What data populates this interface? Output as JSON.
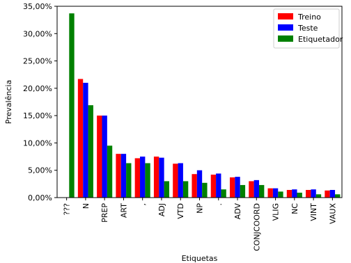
{
  "chart_data": {
    "type": "bar",
    "title": "",
    "xlabel": "Etiquetas",
    "ylabel": "Prevalência",
    "ylim": [
      0,
      35
    ],
    "yticks": [
      {
        "value": 0,
        "label": "0,00%"
      },
      {
        "value": 5,
        "label": "5,00%"
      },
      {
        "value": 10,
        "label": "10,00%"
      },
      {
        "value": 15,
        "label": "15,00%"
      },
      {
        "value": 20,
        "label": "20,00%"
      },
      {
        "value": 25,
        "label": "25,00%"
      },
      {
        "value": 30,
        "label": "30,00%"
      },
      {
        "value": 35,
        "label": "35,00%"
      }
    ],
    "categories": [
      "???",
      "N",
      "PREP",
      "ART",
      ",",
      "ADJ",
      "VTD",
      "NP",
      ".",
      "ADV",
      "CONJCOORD",
      "VLIG",
      "NC",
      "VINT",
      "VAUX"
    ],
    "series": [
      {
        "name": "Treino",
        "color": "#ff0000",
        "values": [
          0,
          21.7,
          15.0,
          8.0,
          7.2,
          7.5,
          6.2,
          4.3,
          4.2,
          3.7,
          3.0,
          1.7,
          1.4,
          1.4,
          1.3
        ]
      },
      {
        "name": "Teste",
        "color": "#0000ff",
        "values": [
          0,
          21.0,
          15.0,
          8.0,
          7.5,
          7.3,
          6.3,
          5.0,
          4.4,
          3.8,
          3.2,
          1.7,
          1.5,
          1.5,
          1.4
        ]
      },
      {
        "name": "Etiquetador",
        "color": "#008000",
        "values": [
          33.7,
          16.9,
          9.5,
          6.3,
          6.3,
          3.0,
          3.0,
          2.7,
          1.5,
          2.3,
          2.3,
          1.1,
          0.9,
          0.6,
          0.6
        ]
      }
    ],
    "legend_position": "top-right",
    "grid": false
  }
}
